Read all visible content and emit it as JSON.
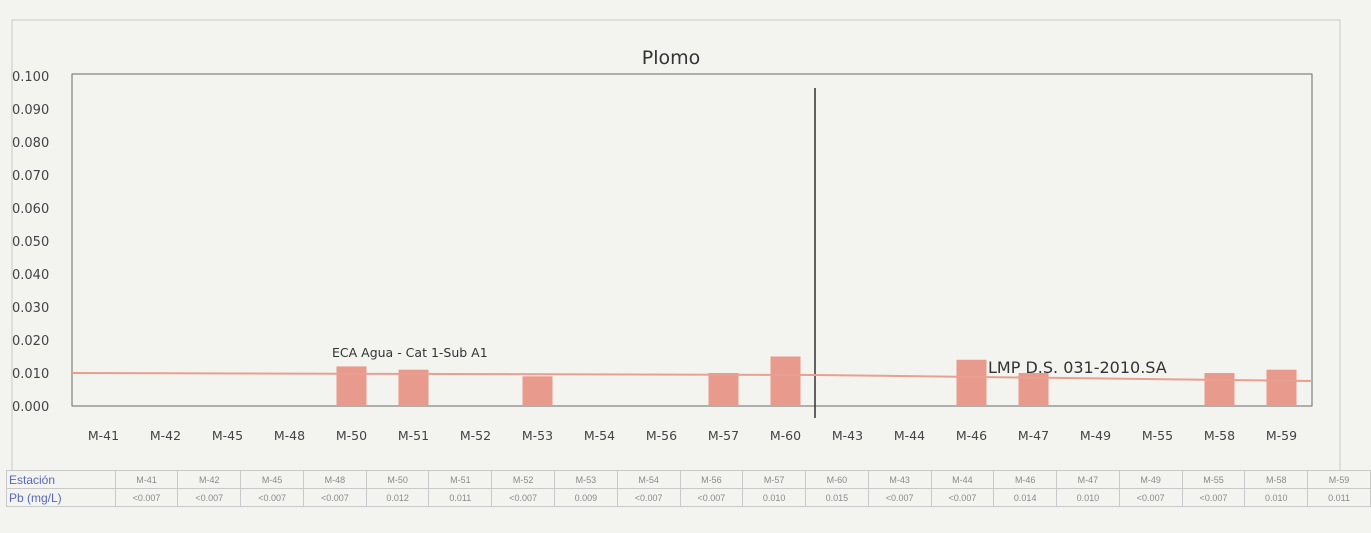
{
  "chart_data": {
    "type": "bar",
    "title": "Plomo",
    "xlabel": "",
    "ylabel": "",
    "ylim": [
      0,
      0.1
    ],
    "yticks": [
      "0.000",
      "0.010",
      "0.020",
      "0.030",
      "0.040",
      "0.050",
      "0.060",
      "0.070",
      "0.080",
      "0.090",
      "0.100"
    ],
    "grid": false,
    "categories": [
      "M-41",
      "M-42",
      "M-45",
      "M-48",
      "M-50",
      "M-51",
      "M-52",
      "M-53",
      "M-54",
      "M-56",
      "M-57",
      "M-60",
      "M-43",
      "M-44",
      "M-46",
      "M-47",
      "M-49",
      "M-55",
      "M-58",
      "M-59"
    ],
    "values": [
      0,
      0,
      0,
      0,
      0.012,
      0.011,
      0,
      0.009,
      0,
      0,
      0.01,
      0.015,
      0,
      0,
      0.014,
      0.01,
      0,
      0,
      0.01,
      0.011
    ],
    "bar_color": "#e89a8c",
    "reference_lines": [
      {
        "label": "ECA Agua - Cat 1-Sub A1",
        "y_start": 0.01,
        "y_end": 0.01,
        "color": "#e8a090"
      },
      {
        "label": "LMP D.S. 031-2010.SA",
        "y_start": 0.01,
        "y_end": 0.01,
        "color": "#e8a090"
      }
    ]
  },
  "table": {
    "row1_header": "Estación",
    "row2_header": "Pb (mg/L)",
    "stations": [
      "M-41",
      "M-42",
      "M-45",
      "M-48",
      "M-50",
      "M-51",
      "M-52",
      "M-53",
      "M-54",
      "M-56",
      "M-57",
      "M-60",
      "M-43",
      "M-44",
      "M-46",
      "M-47",
      "M-49",
      "M-55",
      "M-58",
      "M-59"
    ],
    "values": [
      "<0.007",
      "<0.007",
      "<0.007",
      "<0.007",
      "0.012",
      "0.011",
      "<0.007",
      "0.009",
      "<0.007",
      "<0.007",
      "0.010",
      "0.015",
      "<0.007",
      "<0.007",
      "0.014",
      "0.010",
      "<0.007",
      "<0.007",
      "0.010",
      "0.011"
    ]
  }
}
